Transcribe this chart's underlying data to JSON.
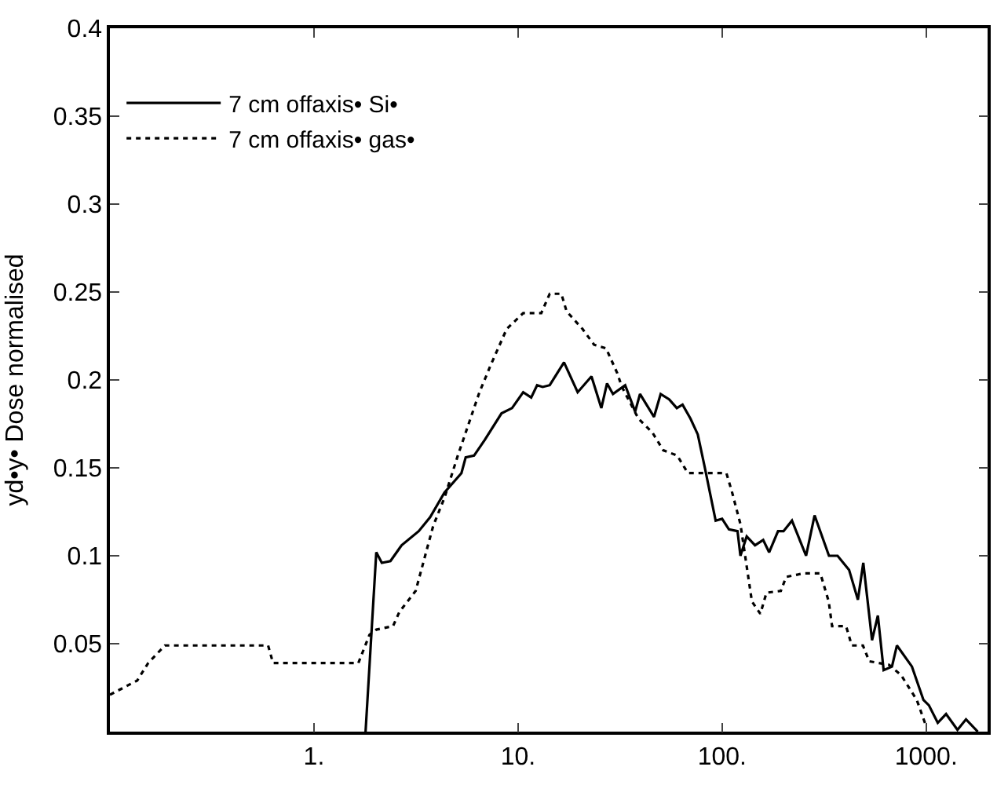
{
  "chart_data": {
    "type": "line",
    "ylabel": "yd•y• Dose normalised",
    "log": "x",
    "xlim": [
      0.1,
      2000
    ],
    "xticks": [
      {
        "value": 1,
        "label": "1."
      },
      {
        "value": 10,
        "label": "10."
      },
      {
        "value": 100,
        "label": "100."
      },
      {
        "value": 1000,
        "label": "1000."
      }
    ],
    "ylim": [
      0,
      0.4
    ],
    "yticks": [
      0.05,
      0.1,
      0.15,
      0.2,
      0.25,
      0.3,
      0.35,
      0.4
    ],
    "grid": false,
    "legend": "top left",
    "marker": "none",
    "series": [
      {
        "name": "7 cm offaxis• Si•",
        "color": "#000000",
        "line_style": "solid",
        "x": [
          1.79,
          2.02,
          2.15,
          2.37,
          2.69,
          3.26,
          3.71,
          4.36,
          5.28,
          5.54,
          6.09,
          6.88,
          8.3,
          9.35,
          10.6,
          11.6,
          12.4,
          13.2,
          14.3,
          16.8,
          19.6,
          22.9,
          25.6,
          27.3,
          29.2,
          33.5,
          37.5,
          39.6,
          46.4,
          50,
          55,
          60,
          64,
          70,
          76,
          82,
          93,
          100,
          108,
          119,
          123,
          132,
          145,
          159,
          170,
          188,
          200,
          220,
          258,
          284,
          334,
          368,
          419,
          463,
          492,
          543,
          580,
          619,
          680,
          719,
          852,
          970,
          1031,
          1140,
          1252,
          1424,
          1568,
          1790
        ],
        "values": [
          0,
          0.102,
          0.096,
          0.097,
          0.106,
          0.114,
          0.122,
          0.136,
          0.147,
          0.156,
          0.157,
          0.166,
          0.181,
          0.184,
          0.193,
          0.19,
          0.197,
          0.196,
          0.197,
          0.21,
          0.193,
          0.202,
          0.184,
          0.198,
          0.192,
          0.197,
          0.182,
          0.192,
          0.179,
          0.192,
          0.189,
          0.184,
          0.186,
          0.178,
          0.169,
          0.151,
          0.12,
          0.121,
          0.115,
          0.114,
          0.1,
          0.111,
          0.106,
          0.109,
          0.102,
          0.114,
          0.114,
          0.12,
          0.1,
          0.123,
          0.1,
          0.1,
          0.092,
          0.075,
          0.096,
          0.052,
          0.066,
          0.035,
          0.037,
          0.049,
          0.037,
          0.018,
          0.015,
          0.005,
          0.01,
          0.001,
          0.007,
          0
        ]
      },
      {
        "name": "7 cm offaxis• gas•",
        "color": "#000000",
        "line_style": "dotted",
        "x": [
          0.1,
          0.136,
          0.154,
          0.186,
          0.596,
          0.63,
          1.65,
          1.87,
          2.02,
          2.44,
          2.62,
          3.15,
          3.84,
          4.36,
          5.07,
          6.47,
          7.32,
          8.8,
          10.6,
          13,
          14.3,
          16.3,
          17.3,
          20.7,
          23.6,
          27,
          30.6,
          32.3,
          38.9,
          45.6,
          51.5,
          60.3,
          68,
          105,
          112,
          123,
          140,
          154,
          165,
          194,
          206,
          251,
          303,
          333,
          346,
          405,
          432,
          490,
          526,
          658,
          755,
          900,
          1000
        ],
        "values": [
          0.021,
          0.029,
          0.039,
          0.049,
          0.049,
          0.039,
          0.039,
          0.055,
          0.058,
          0.06,
          0.068,
          0.08,
          0.117,
          0.133,
          0.157,
          0.193,
          0.208,
          0.229,
          0.238,
          0.238,
          0.249,
          0.249,
          0.239,
          0.229,
          0.22,
          0.218,
          0.204,
          0.196,
          0.178,
          0.17,
          0.16,
          0.157,
          0.147,
          0.147,
          0.136,
          0.118,
          0.074,
          0.067,
          0.079,
          0.08,
          0.088,
          0.09,
          0.09,
          0.074,
          0.06,
          0.06,
          0.049,
          0.049,
          0.04,
          0.038,
          0.032,
          0.018,
          0.003
        ]
      }
    ]
  }
}
